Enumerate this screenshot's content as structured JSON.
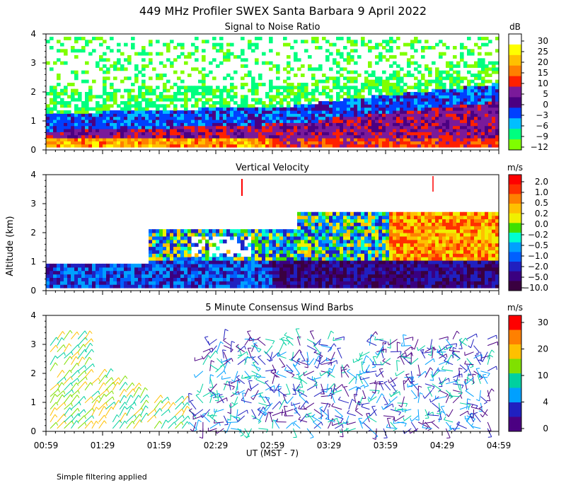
{
  "title": "449 MHz Profiler SWEX Santa Barbara  9 April 2022",
  "y_axis_label": "Altitude (km)",
  "x_axis_label": "UT  (MST - 7)",
  "footnote": "Simple filtering applied",
  "x_ticks": [
    "00:59",
    "01:29",
    "01:59",
    "02:29",
    "02:59",
    "03:29",
    "03:59",
    "04:29",
    "04:59"
  ],
  "y_ticks": [
    "0",
    "1",
    "2",
    "3",
    "4"
  ],
  "colors": {
    "snr_scale": [
      "#7fff00",
      "#00ff7f",
      "#00bfff",
      "#0040ff",
      "#4b0082",
      "#7a1a9a",
      "#ff2000",
      "#ff8000",
      "#ffc000",
      "#ffff00",
      "#ffffff"
    ],
    "vel_scale": [
      "#3a0040",
      "#3a0080",
      "#2020c0",
      "#0060ff",
      "#00a0ff",
      "#00ffd0",
      "#40e000",
      "#f0f000",
      "#ffc000",
      "#ff8000",
      "#ff3000",
      "#ff0000"
    ],
    "wind_scale": [
      "#4b0082",
      "#2020c0",
      "#00a0ff",
      "#00d0a0",
      "#80e000",
      "#ffc000",
      "#ff8000",
      "#ff0000"
    ]
  },
  "chart_data": [
    {
      "type": "heatmap",
      "title": "Signal to Noise Ratio",
      "colorbar_unit": "dB",
      "colorbar_labels": [
        "30",
        "25",
        "20",
        "15",
        "10",
        "5",
        "0",
        "−3",
        "−6",
        "−9",
        "−12"
      ],
      "xlabel": "UT  (MST - 7)",
      "ylabel": "Altitude (km)",
      "ylim": [
        0,
        4
      ],
      "x_range": [
        "00:59",
        "04:59"
      ]
    },
    {
      "type": "heatmap",
      "title": "Vertical Velocity",
      "colorbar_unit": "m/s",
      "colorbar_labels": [
        "2.0",
        "1.0",
        "0.5",
        "0.2",
        "0.0",
        "−0.2",
        "−0.5",
        "−1.0",
        "−2.0",
        "−5.0",
        "−10.0"
      ],
      "xlabel": "UT  (MST - 7)",
      "ylabel": "Altitude (km)",
      "ylim": [
        0,
        4
      ],
      "x_range": [
        "00:59",
        "04:59"
      ]
    },
    {
      "type": "scatter",
      "title": "5 Minute Consensus Wind Barbs",
      "colorbar_unit": "m/s",
      "colorbar_labels": [
        "30",
        "20",
        "10",
        "4",
        "0"
      ],
      "xlabel": "UT  (MST - 7)",
      "ylabel": "Altitude (km)",
      "ylim": [
        0,
        4
      ],
      "x_range": [
        "00:59",
        "04:59"
      ]
    }
  ]
}
